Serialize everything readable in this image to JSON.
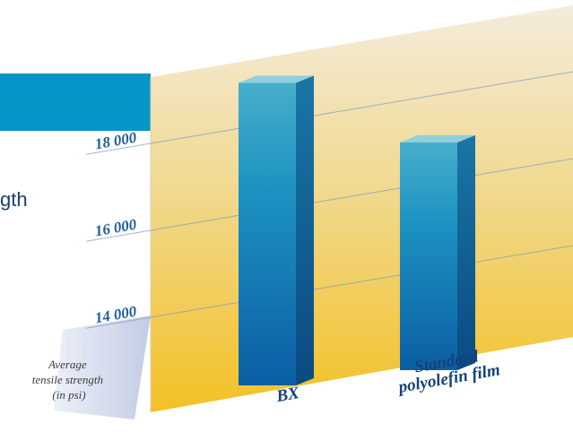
{
  "chart_data": {
    "type": "bar",
    "title": "",
    "categories": [
      "BX",
      "Standard polyolefin film"
    ],
    "category_lines": [
      [
        "BX"
      ],
      [
        "Standard",
        "polyolefin film"
      ]
    ],
    "values": [
      19050,
      17050
    ],
    "ylabel_lines": [
      "Average",
      "tensile strength",
      "(in psi)"
    ],
    "yticks": [
      14000,
      16000,
      18000
    ],
    "ytick_labels": [
      "14 000",
      "16 000",
      "18 000"
    ],
    "ylim": [
      12400,
      19800
    ],
    "grid": true,
    "legend": "none"
  },
  "header_partial_text": "gth",
  "colors": {
    "header_band": "#0596c8",
    "bar_top": "#8fd0dc",
    "bar_front_top": "#2aa0c6",
    "bar_front_bottom": "#0c5fa4",
    "bar_side": "#0a4f86",
    "wall_top": "#f3ead6",
    "wall_bottom": "#f3c22c"
  }
}
